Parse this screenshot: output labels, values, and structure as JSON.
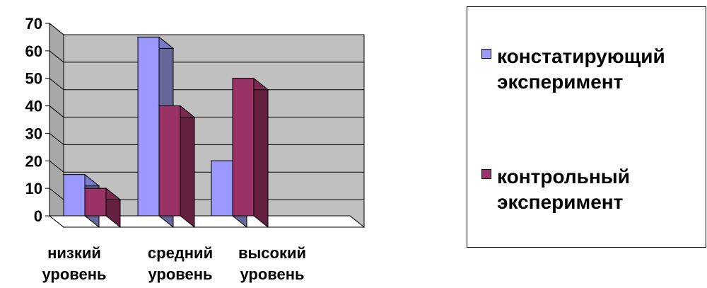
{
  "chart_data": {
    "type": "bar",
    "categories": [
      [
        "низкий",
        "уровень"
      ],
      [
        "средний",
        "уровень"
      ],
      [
        "высокий",
        "уровень"
      ]
    ],
    "series": [
      {
        "name": "констатирующий эксперимент",
        "values": [
          15,
          65,
          20
        ],
        "color": "#9999FF",
        "side_color": "#666699",
        "top_color": "#7A7ACC"
      },
      {
        "name": "контрольный эксперимент",
        "values": [
          10,
          40,
          50
        ],
        "color": "#993366",
        "side_color": "#66203F",
        "top_color": "#7A2950"
      }
    ],
    "y_ticks": [
      "0",
      "10",
      "20",
      "30",
      "40",
      "50",
      "60",
      "70"
    ],
    "ylim": [
      0,
      70
    ],
    "grid": true,
    "three_d": true,
    "wall_color": "#C0C0C0",
    "legend_position": "right"
  },
  "legend": {
    "items": [
      {
        "lines": [
          "констатирующий",
          "эксперимент"
        ]
      },
      {
        "lines": [
          "контрольный",
          "эксперимент"
        ]
      }
    ]
  }
}
